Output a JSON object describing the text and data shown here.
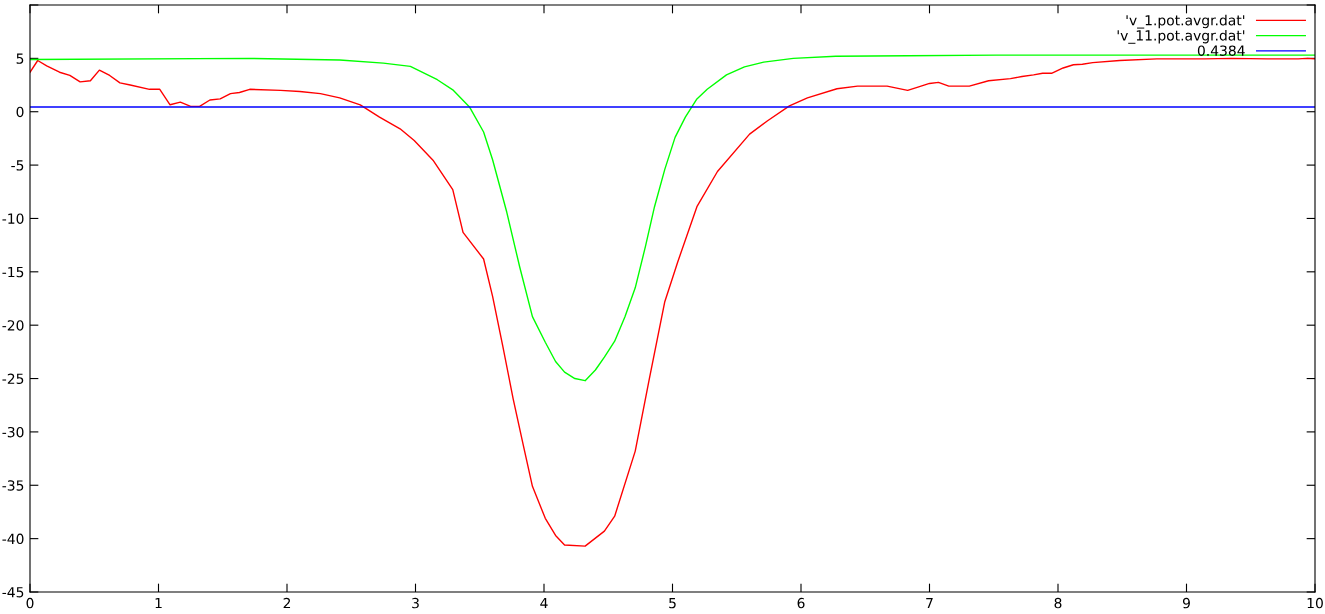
{
  "chart_data": {
    "type": "line",
    "xlim": [
      0,
      10
    ],
    "ylim": [
      -45,
      10
    ],
    "xticks": [
      0,
      1,
      2,
      3,
      4,
      5,
      6,
      7,
      8,
      9,
      10
    ],
    "yticks": [
      -45,
      -40,
      -35,
      -30,
      -25,
      -20,
      -15,
      -10,
      -5,
      0,
      5,
      {
        "value": 10,
        "label": null
      }
    ],
    "grid": false,
    "legend": "top right",
    "marker": "none",
    "line_style": "solid",
    "series": [
      {
        "name": "'v_1.pot.avgr.dat'",
        "color": "#ff0000",
        "x": [
          0,
          0.06,
          0.13,
          0.23,
          0.31,
          0.39,
          0.47,
          0.54,
          0.62,
          0.7,
          0.78,
          0.93,
          1.01,
          1.09,
          1.17,
          1.25,
          1.32,
          1.4,
          1.48,
          1.56,
          1.63,
          1.71,
          1.95,
          2.1,
          2.26,
          2.41,
          2.57,
          2.72,
          2.88,
          2.99,
          3.14,
          3.29,
          3.37,
          3.53,
          3.6,
          3.68,
          3.76,
          3.84,
          3.91,
          4.01,
          4.09,
          4.16,
          4.32,
          4.47,
          4.55,
          4.71,
          4.82,
          4.94,
          5.04,
          5.19,
          5.35,
          5.6,
          5.74,
          5.91,
          6.05,
          6.28,
          6.44,
          6.67,
          6.83,
          6.91,
          7.0,
          7.07,
          7.15,
          7.31,
          7.46,
          7.63,
          7.72,
          7.81,
          7.88,
          7.95,
          8.04,
          8.12,
          8.19,
          8.27,
          8.48,
          8.77,
          9.14,
          9.35,
          9.63,
          9.87,
          9.93,
          10
        ],
        "values": [
          3.7,
          4.8,
          4.3,
          3.7,
          3.4,
          2.8,
          2.9,
          3.9,
          3.4,
          2.7,
          2.5,
          2.1,
          2.1,
          0.65,
          0.9,
          0.5,
          0.5,
          1.1,
          1.2,
          1.7,
          1.8,
          2.1,
          2.0,
          1.9,
          1.7,
          1.3,
          0.65,
          -0.5,
          -1.6,
          -2.7,
          -4.6,
          -7.3,
          -11.3,
          -13.8,
          -17.3,
          -22.0,
          -26.9,
          -31.3,
          -35.1,
          -38.1,
          -39.7,
          -40.6,
          -40.7,
          -39.3,
          -37.9,
          -31.8,
          -25.0,
          -17.8,
          -14.1,
          -8.9,
          -5.6,
          -2.1,
          -0.85,
          0.55,
          1.3,
          2.15,
          2.4,
          2.4,
          2.0,
          2.3,
          2.65,
          2.75,
          2.4,
          2.4,
          2.9,
          3.1,
          3.3,
          3.45,
          3.6,
          3.6,
          4.1,
          4.4,
          4.45,
          4.6,
          4.8,
          4.95,
          4.95,
          5.0,
          4.95,
          4.95,
          5.0,
          4.95
        ]
      },
      {
        "name": "'v_11.pot.avgr.dat'",
        "color": "#00ff00",
        "x": [
          0,
          1.71,
          2.41,
          2.75,
          2.96,
          3.17,
          3.29,
          3.42,
          3.53,
          3.6,
          3.71,
          3.81,
          3.91,
          4.01,
          4.09,
          4.16,
          4.24,
          4.32,
          4.4,
          4.47,
          4.55,
          4.63,
          4.71,
          4.79,
          4.86,
          4.94,
          5.02,
          5.1,
          5.19,
          5.27,
          5.42,
          5.56,
          5.71,
          5.94,
          6.27,
          6.83,
          7.52,
          10
        ],
        "values": [
          4.9,
          5.0,
          4.85,
          4.55,
          4.25,
          3.0,
          2.05,
          0.45,
          -1.9,
          -4.5,
          -9.4,
          -14.5,
          -19.2,
          -21.6,
          -23.4,
          -24.4,
          -25.0,
          -25.2,
          -24.2,
          -23.0,
          -21.5,
          -19.2,
          -16.5,
          -12.6,
          -8.9,
          -5.4,
          -2.4,
          -0.5,
          1.2,
          2.1,
          3.45,
          4.2,
          4.65,
          5.0,
          5.2,
          5.25,
          5.3,
          5.3
        ]
      },
      {
        "name": "0.4384",
        "color": "#0000ff",
        "x": [
          0,
          10
        ],
        "values": [
          0.4384,
          0.4384
        ]
      }
    ]
  }
}
